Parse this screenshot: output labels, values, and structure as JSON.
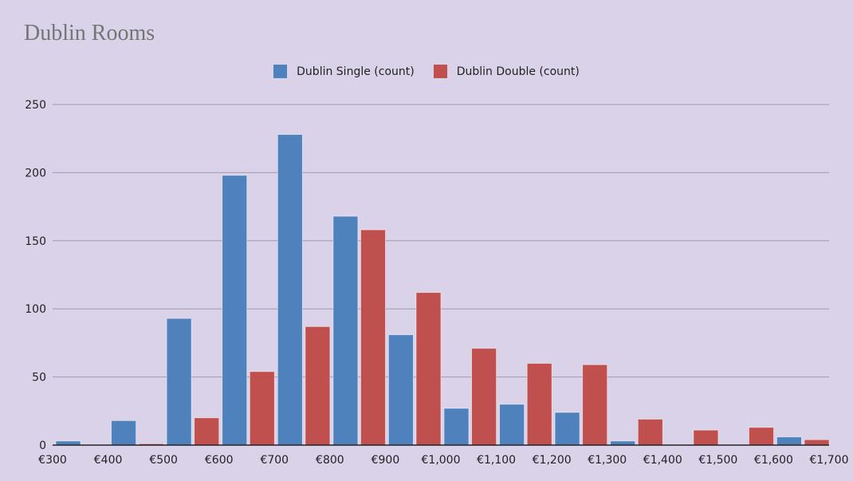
{
  "title": "Dublin Rooms",
  "chart_data": {
    "type": "bar",
    "title": "Dublin Rooms",
    "xlabel": "",
    "ylabel": "",
    "categories": [
      "€300",
      "€400",
      "€500",
      "€600",
      "€700",
      "€800",
      "€900",
      "€1,000",
      "€1,100",
      "€1,200",
      "€1,300",
      "€1,400",
      "€1,500",
      "€1,600"
    ],
    "x_ticks": [
      "€300",
      "€400",
      "€500",
      "€600",
      "€700",
      "€800",
      "€900",
      "€1,000",
      "€1,100",
      "€1,200",
      "€1,300",
      "€1,400",
      "€1,500",
      "€1,600",
      "€1,700"
    ],
    "y_ticks": [
      "0",
      "50",
      "100",
      "150",
      "200",
      "250"
    ],
    "ylim": [
      0,
      250
    ],
    "grid": true,
    "legend_position": "top-center",
    "series": [
      {
        "name": "Dublin Single (count)",
        "color": "#4f81bd",
        "values": [
          3,
          18,
          93,
          198,
          228,
          168,
          81,
          27,
          30,
          24,
          3,
          0,
          0,
          6
        ]
      },
      {
        "name": "Dublin Double (count)",
        "color": "#c0504d",
        "values": [
          0,
          1,
          20,
          54,
          87,
          158,
          112,
          71,
          60,
          59,
          19,
          11,
          13,
          4
        ]
      }
    ]
  }
}
